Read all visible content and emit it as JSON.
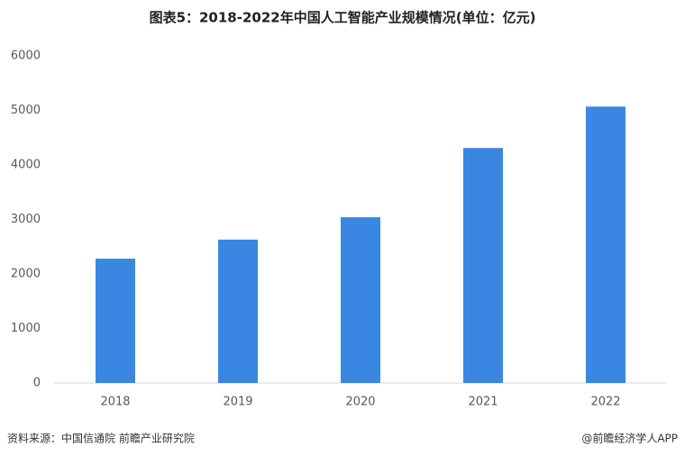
{
  "chart_data": {
    "type": "bar",
    "title": "图表5：2018-2022年中国人工智能产业规模情况(单位：亿元)",
    "categories": [
      "2018",
      "2019",
      "2020",
      "2021",
      "2022"
    ],
    "values": [
      2280,
      2630,
      3040,
      4310,
      5070
    ],
    "color": "#3a87e3",
    "ylim": [
      0,
      6000
    ],
    "yticks": [
      0,
      1000,
      2000,
      3000,
      4000,
      5000,
      6000
    ],
    "grid": false
  },
  "source": "资料来源：中国信通院 前瞻产业研究院",
  "credit": "@前瞻经济学人APP"
}
